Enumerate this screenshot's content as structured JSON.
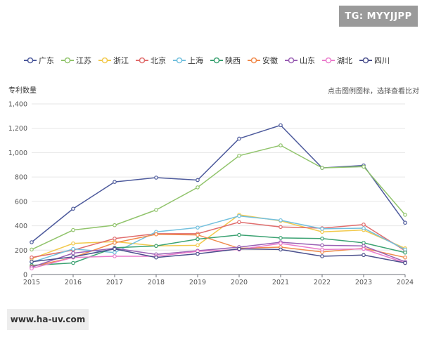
{
  "watermark_top": "TG: MYYJJPP",
  "watermark_bottom": "www.ha-uv.com",
  "hint": "点击图例图标，选择查看比对",
  "chart_data": {
    "type": "line",
    "ylabel": "专利数量",
    "xlabel": "",
    "x": [
      "2015",
      "2016",
      "2017",
      "2018",
      "2019",
      "2020",
      "2021",
      "2022",
      "2023",
      "2024"
    ],
    "ylim": [
      0,
      1400
    ],
    "yticks": [
      "0",
      "200",
      "400",
      "600",
      "800",
      "1,000",
      "1,200",
      "1,400"
    ],
    "ytick_values": [
      0,
      200,
      400,
      600,
      800,
      1000,
      1200,
      1400
    ],
    "grid": true,
    "legend_position": "top-left",
    "series": [
      {
        "name": "广东",
        "color": "#4d5a9c",
        "values": [
          265,
          540,
          760,
          795,
          775,
          1115,
          1225,
          875,
          895,
          425
        ]
      },
      {
        "name": "江苏",
        "color": "#91c46c",
        "values": [
          205,
          365,
          405,
          530,
          715,
          975,
          1060,
          875,
          885,
          490
        ]
      },
      {
        "name": "浙江",
        "color": "#f2c94c",
        "values": [
          130,
          255,
          270,
          235,
          240,
          490,
          440,
          350,
          365,
          215
        ]
      },
      {
        "name": "北京",
        "color": "#e06c6c",
        "values": [
          140,
          200,
          295,
          335,
          335,
          430,
          390,
          380,
          410,
          195
        ]
      },
      {
        "name": "上海",
        "color": "#73c0de",
        "values": [
          100,
          210,
          180,
          350,
          385,
          480,
          445,
          375,
          380,
          205
        ]
      },
      {
        "name": "陕西",
        "color": "#3ba272",
        "values": [
          75,
          95,
          220,
          235,
          290,
          325,
          300,
          295,
          260,
          180
        ]
      },
      {
        "name": "安徽",
        "color": "#f08a4b",
        "values": [
          65,
          140,
          260,
          330,
          325,
          215,
          225,
          185,
          215,
          140
        ]
      },
      {
        "name": "山东",
        "color": "#9a60b4",
        "values": [
          60,
          175,
          215,
          165,
          195,
          225,
          265,
          240,
          235,
          105
        ]
      },
      {
        "name": "湖北",
        "color": "#ea7ccc",
        "values": [
          50,
          140,
          150,
          150,
          190,
          205,
          255,
          205,
          210,
          95
        ]
      },
      {
        "name": "四川",
        "color": "#4a4f8c",
        "values": [
          105,
          145,
          210,
          140,
          170,
          210,
          205,
          150,
          160,
          95
        ]
      }
    ]
  }
}
